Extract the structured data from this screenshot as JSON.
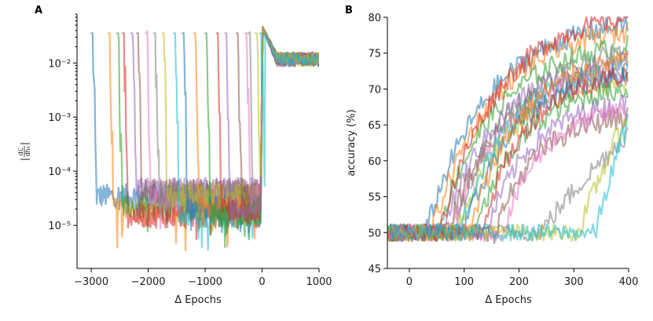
{
  "chart_data": [
    {
      "panel_label": "A",
      "type": "line",
      "y_scale": "log",
      "xlabel": "Δ Epochs",
      "ylabel_main": "dℒ",
      "ylabel_sub": "dh₀",
      "xlim": [
        -3250,
        1000
      ],
      "ylim": [
        1.6e-06,
        0.08
      ],
      "x_ticks": [
        -3000,
        -2000,
        -1000,
        0,
        1000
      ],
      "x_tick_labels": [
        "−3000",
        "−2000",
        "−1000",
        "0",
        "1000"
      ],
      "y_ticks": [
        1e-05,
        0.0001,
        0.001,
        0.01
      ],
      "y_tick_labels": [
        "10⁻⁵",
        "10⁻⁴",
        "10⁻³",
        "10⁻²"
      ],
      "series_start_epochs": [
        -3000,
        -2700,
        -2550,
        -2450,
        -2300,
        -2200,
        -2050,
        -1900,
        -1750,
        -1550,
        -1400,
        -1200,
        -1000,
        -800,
        -650,
        -450,
        -300,
        -250,
        -120,
        -40
      ],
      "plateau_range": [
        1e-05,
        0.0001
      ],
      "end_value_range": [
        0.009,
        0.015
      ],
      "peak_value_near_zero": 0.045
    },
    {
      "panel_label": "B",
      "type": "line",
      "xlabel": "Δ Epochs",
      "ylabel": "accuracy (%)",
      "xlim": [
        -40,
        400
      ],
      "ylim": [
        45,
        80
      ],
      "x_ticks": [
        0,
        100,
        200,
        300,
        400
      ],
      "x_tick_labels": [
        "0",
        "100",
        "200",
        "300",
        "400"
      ],
      "y_ticks": [
        45,
        50,
        55,
        60,
        65,
        70,
        75,
        80
      ],
      "y_tick_labels": [
        "45",
        "50",
        "55",
        "60",
        "65",
        "70",
        "75",
        "80"
      ],
      "baseline_accuracy": 50,
      "series": [
        {
          "rise_start": 30,
          "final": 79
        },
        {
          "rise_start": 40,
          "final": 78
        },
        {
          "rise_start": 50,
          "final": 76
        },
        {
          "rise_start": 55,
          "final": 80
        },
        {
          "rise_start": 60,
          "final": 74
        },
        {
          "rise_start": 70,
          "final": 73
        },
        {
          "rise_start": 75,
          "final": 72
        },
        {
          "rise_start": 80,
          "final": 75
        },
        {
          "rise_start": 85,
          "final": 71
        },
        {
          "rise_start": 90,
          "final": 73
        },
        {
          "rise_start": 100,
          "final": 72
        },
        {
          "rise_start": 110,
          "final": 74
        },
        {
          "rise_start": 120,
          "final": 70
        },
        {
          "rise_start": 130,
          "final": 72
        },
        {
          "rise_start": 140,
          "final": 68
        },
        {
          "rise_start": 155,
          "final": 66
        },
        {
          "rise_start": 170,
          "final": 67
        },
        {
          "rise_start": 240,
          "final": 64
        },
        {
          "rise_start": 310,
          "final": 67
        },
        {
          "rise_start": 340,
          "final": 66
        }
      ]
    }
  ],
  "colors": [
    "#1f77b4",
    "#ff7f0e",
    "#2ca02c",
    "#d62728",
    "#9467bd",
    "#8c564b",
    "#e377c2",
    "#7f7f7f",
    "#bcbd22",
    "#17becf"
  ]
}
